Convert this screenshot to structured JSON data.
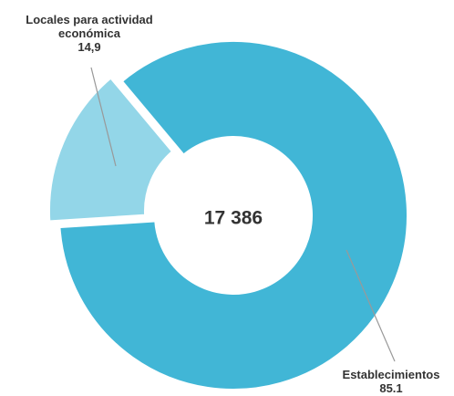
{
  "chart_data": {
    "type": "donut",
    "categories": [
      "Establecimientos",
      "Locales para actividad económica"
    ],
    "values": [
      85.1,
      14.9
    ],
    "value_labels": [
      "85.1",
      "14,9"
    ],
    "colors": [
      "#41b6d6",
      "#93d6e8"
    ],
    "center_label": "17 386"
  }
}
